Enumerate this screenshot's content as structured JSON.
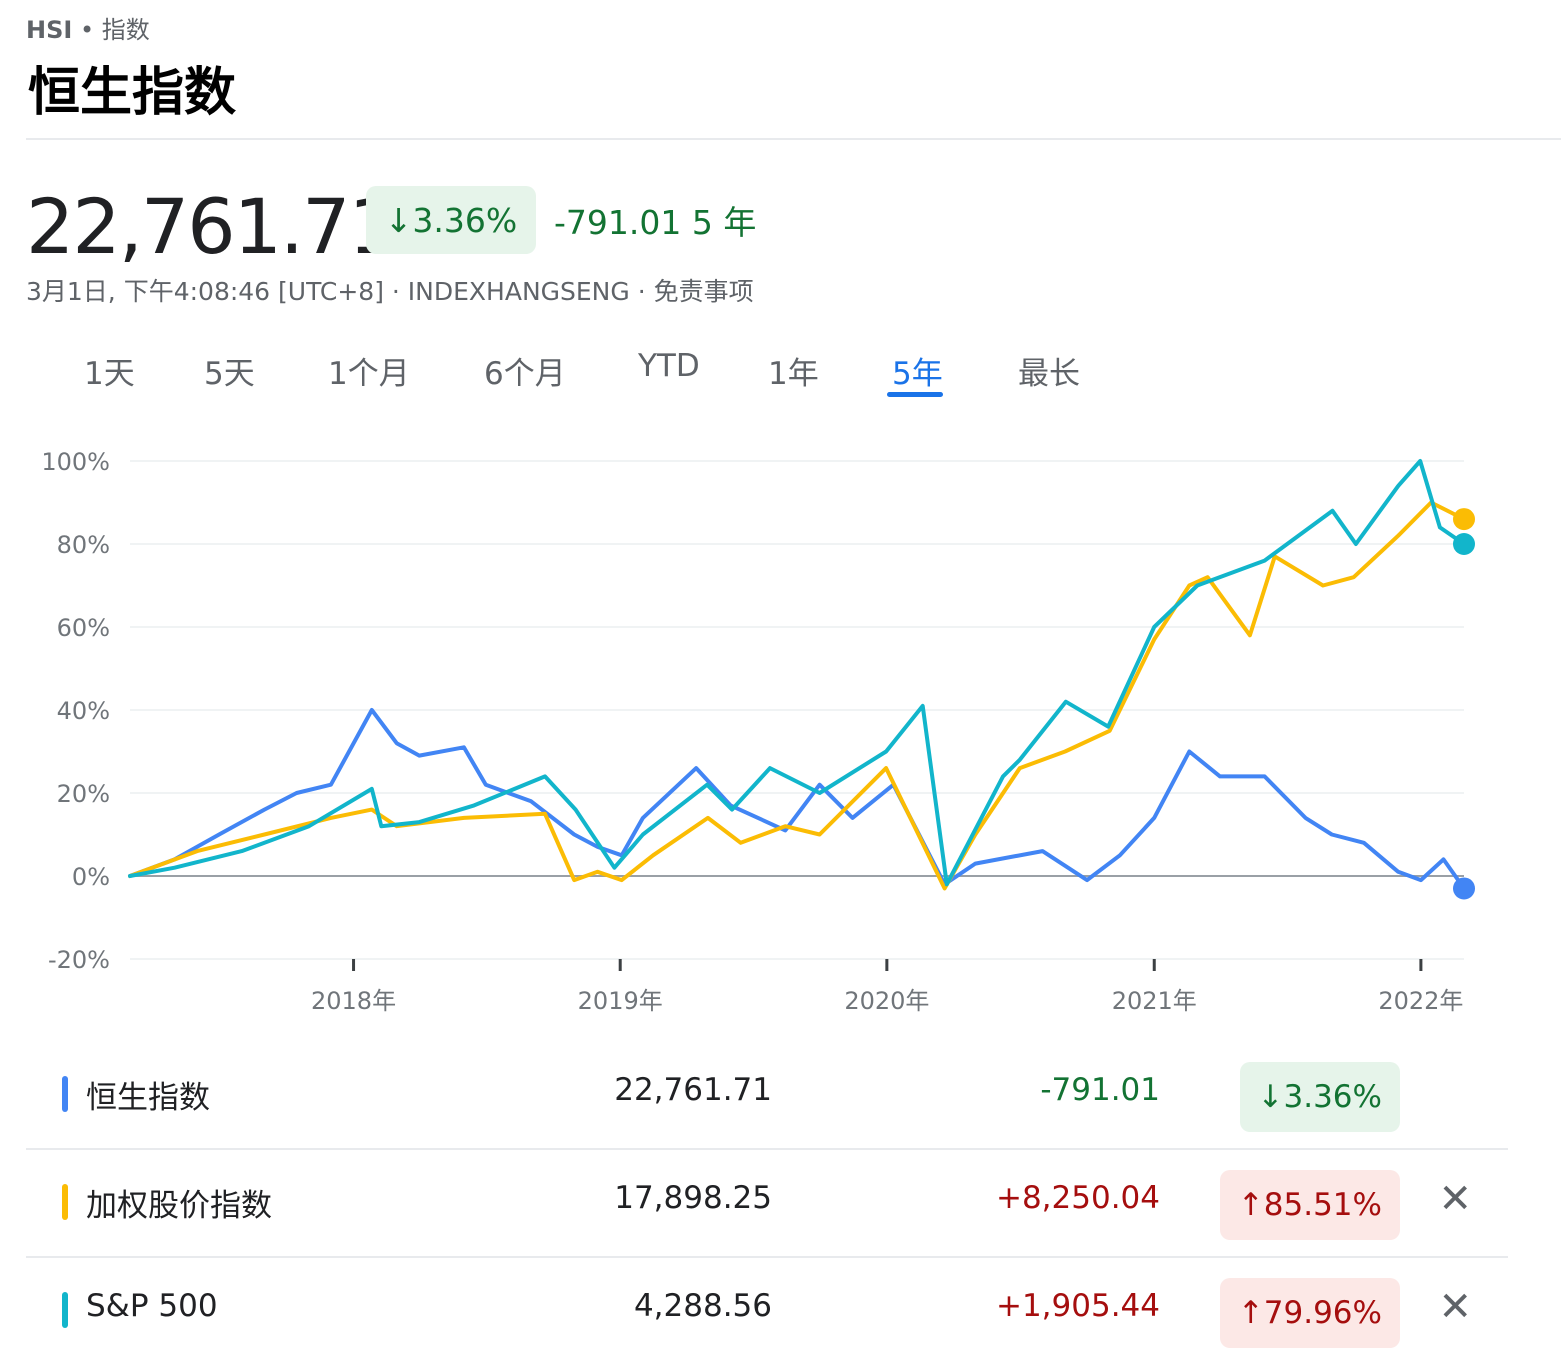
{
  "header": {
    "symbol": "HSI",
    "separator": "•",
    "category": "指数",
    "title": "恒生指数"
  },
  "quote": {
    "price": "22,761.71",
    "change_pct": "3.36%",
    "change_arrow": "↓",
    "change_abs": "-791.01",
    "period": "5 年",
    "timestamp": "3月1日, 下午4:08:46 [UTC+8]",
    "exchange": "INDEXHANGSENG",
    "disclaimer": "免责事项",
    "meta_sep": " · "
  },
  "tabs": [
    {
      "label": "1天",
      "active": false
    },
    {
      "label": "5天",
      "active": false
    },
    {
      "label": "1个月",
      "active": false
    },
    {
      "label": "6个月",
      "active": false
    },
    {
      "label": "YTD",
      "active": false
    },
    {
      "label": "1年",
      "active": false
    },
    {
      "label": "5年",
      "active": true
    },
    {
      "label": "最长",
      "active": false
    }
  ],
  "legend": [
    {
      "name": "恒生指数",
      "value": "22,761.71",
      "change": "-791.01",
      "pct": "↓3.36%",
      "direction": "down",
      "color": "#4285f4",
      "removable": false
    },
    {
      "name": "加权股价指数",
      "value": "17,898.25",
      "change": "+8,250.04",
      "pct": "↑85.51%",
      "direction": "up",
      "color": "#fbbc04",
      "removable": true
    },
    {
      "name": "S&P  500",
      "value": "4,288.56",
      "change": "+1,905.44",
      "pct": "↑79.96%",
      "direction": "up",
      "color": "#12b5cb",
      "removable": true
    }
  ],
  "icons": {
    "close": "close-icon"
  },
  "chart_data": {
    "type": "line",
    "x_range": [
      "2017-03-01",
      "2022-03-01"
    ],
    "x_ticks": [
      "2018年",
      "2019年",
      "2020年",
      "2021年",
      "2022年"
    ],
    "x_tick_dates": [
      "2018-01-01",
      "2019-01-01",
      "2020-01-01",
      "2021-01-01",
      "2022-01-01"
    ],
    "y_ticks": [
      "100%",
      "80%",
      "60%",
      "40%",
      "20%",
      "0%",
      "-20%"
    ],
    "ylim": [
      -20,
      100
    ],
    "baseline": 0,
    "grid": true,
    "series": [
      {
        "name": "恒生指数",
        "color": "#4285f4",
        "dates": [
          "2017-03-01",
          "2017-05-01",
          "2017-07-01",
          "2017-09-01",
          "2017-10-15",
          "2017-12-01",
          "2018-01-26",
          "2018-03-01",
          "2018-04-01",
          "2018-06-01",
          "2018-07-01",
          "2018-09-01",
          "2018-10-30",
          "2018-12-01",
          "2019-01-03",
          "2019-02-01",
          "2019-04-15",
          "2019-06-01",
          "2019-08-15",
          "2019-10-01",
          "2019-11-15",
          "2020-01-10",
          "2020-03-20",
          "2020-05-01",
          "2020-06-01",
          "2020-08-01",
          "2020-10-01",
          "2020-11-15",
          "2021-01-01",
          "2021-02-18",
          "2021-04-01",
          "2021-06-01",
          "2021-07-27",
          "2021-09-01",
          "2021-10-15",
          "2021-12-01",
          "2022-01-01",
          "2022-02-01",
          "2022-03-01"
        ],
        "values": [
          0,
          4,
          10,
          16,
          20,
          22,
          40,
          32,
          29,
          31,
          22,
          18,
          10,
          7,
          5,
          14,
          26,
          17,
          11,
          22,
          14,
          22,
          -2,
          3,
          4,
          6,
          -1,
          5,
          14,
          30,
          24,
          24,
          14,
          10,
          8,
          1,
          -1,
          4,
          -3
        ]
      },
      {
        "name": "加权股价指数",
        "color": "#fbbc04",
        "dates": [
          "2017-03-01",
          "2017-06-01",
          "2017-09-01",
          "2017-12-01",
          "2018-01-26",
          "2018-03-01",
          "2018-06-01",
          "2018-09-20",
          "2018-10-30",
          "2018-12-01",
          "2019-01-03",
          "2019-02-15",
          "2019-05-01",
          "2019-06-15",
          "2019-08-15",
          "2019-10-01",
          "2019-12-31",
          "2020-03-20",
          "2020-05-01",
          "2020-07-01",
          "2020-09-01",
          "2020-11-01",
          "2021-01-01",
          "2021-02-18",
          "2021-03-15",
          "2021-05-12",
          "2021-06-15",
          "2021-08-20",
          "2021-10-01",
          "2021-12-01",
          "2022-01-15",
          "2022-03-01"
        ],
        "values": [
          0,
          6,
          10,
          14,
          16,
          12,
          14,
          15,
          -1,
          1,
          -1,
          5,
          14,
          8,
          12,
          10,
          26,
          -3,
          10,
          26,
          30,
          35,
          57,
          70,
          72,
          58,
          77,
          70,
          72,
          82,
          90,
          86
        ]
      },
      {
        "name": "S&P  500",
        "color": "#12b5cb",
        "dates": [
          "2017-03-01",
          "2017-05-01",
          "2017-08-01",
          "2017-11-01",
          "2018-01-26",
          "2018-02-08",
          "2018-04-01",
          "2018-06-15",
          "2018-09-20",
          "2018-11-01",
          "2018-12-24",
          "2019-02-01",
          "2019-04-30",
          "2019-06-03",
          "2019-07-25",
          "2019-10-01",
          "2019-12-31",
          "2020-02-19",
          "2020-03-23",
          "2020-06-08",
          "2020-07-01",
          "2020-09-02",
          "2020-10-30",
          "2021-01-01",
          "2021-03-01",
          "2021-06-01",
          "2021-09-02",
          "2021-10-04",
          "2021-12-01",
          "2021-12-31",
          "2022-01-27",
          "2022-03-01"
        ],
        "values": [
          0,
          2,
          6,
          12,
          21,
          12,
          13,
          17,
          24,
          16,
          2,
          10,
          22,
          16,
          26,
          20,
          30,
          41,
          -2,
          24,
          28,
          42,
          36,
          60,
          70,
          76,
          88,
          80,
          94,
          100,
          84,
          80
        ]
      }
    ]
  }
}
